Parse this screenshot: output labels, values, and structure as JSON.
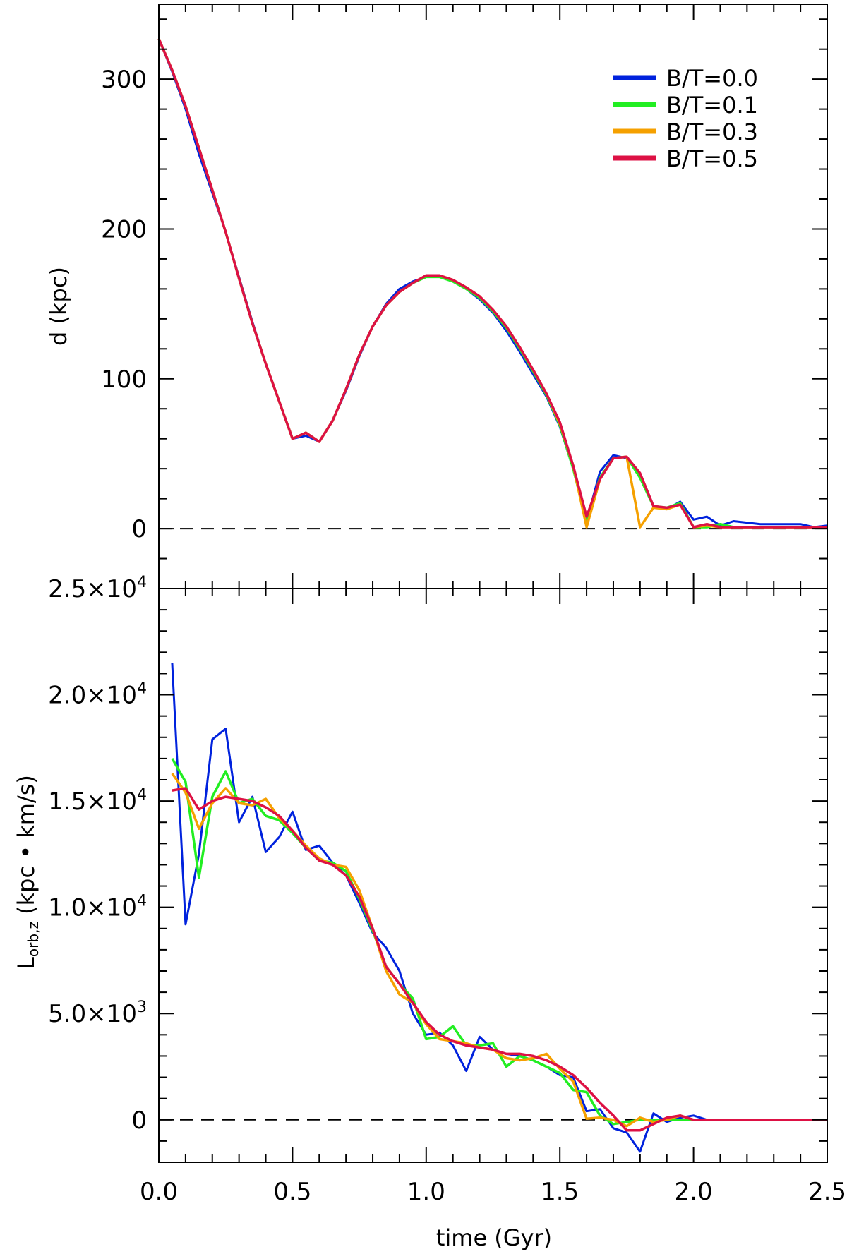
{
  "chart_data": [
    {
      "type": "line",
      "ylabel": "d (kpc)",
      "xlim": [
        0,
        2.5
      ],
      "ylim": [
        -40,
        350
      ],
      "y_ticks": [
        0,
        100,
        200,
        300
      ],
      "y_tick_labels": [
        "0",
        "100",
        "200",
        "300"
      ],
      "reference_line": 0,
      "legend": {
        "position": "top-right"
      },
      "series": [
        {
          "name": "B/T=0.0",
          "color": "#0022dd",
          "x": [
            0,
            0.05,
            0.1,
            0.15,
            0.2,
            0.25,
            0.3,
            0.35,
            0.4,
            0.45,
            0.5,
            0.55,
            0.6,
            0.65,
            0.7,
            0.75,
            0.8,
            0.85,
            0.9,
            0.95,
            1.0,
            1.05,
            1.1,
            1.15,
            1.2,
            1.25,
            1.3,
            1.35,
            1.4,
            1.45,
            1.5,
            1.55,
            1.6,
            1.65,
            1.7,
            1.75,
            1.8,
            1.85,
            1.9,
            1.95,
            2.0,
            2.05,
            2.1,
            2.15,
            2.2,
            2.25,
            2.3,
            2.35,
            2.4,
            2.45,
            2.5
          ],
          "y": [
            327,
            305,
            280,
            250,
            224,
            198,
            168,
            138,
            110,
            85,
            60,
            62,
            58,
            72,
            92,
            115,
            135,
            150,
            160,
            165,
            168,
            168,
            165,
            160,
            153,
            144,
            132,
            118,
            103,
            88,
            68,
            40,
            5,
            38,
            49,
            47,
            36,
            15,
            13,
            18,
            6,
            8,
            2,
            5,
            4,
            3,
            3,
            3,
            3,
            1,
            2
          ]
        },
        {
          "name": "B/T=0.1",
          "color": "#22ee22",
          "x": [
            0,
            0.05,
            0.1,
            0.15,
            0.2,
            0.25,
            0.3,
            0.35,
            0.4,
            0.45,
            0.5,
            0.55,
            0.6,
            0.65,
            0.7,
            0.75,
            0.8,
            0.85,
            0.9,
            0.95,
            1.0,
            1.05,
            1.1,
            1.15,
            1.2,
            1.25,
            1.3,
            1.35,
            1.4,
            1.45,
            1.5,
            1.55,
            1.6,
            1.65,
            1.7,
            1.75,
            1.8,
            1.85,
            1.9,
            1.95,
            2.0,
            2.05,
            2.1,
            2.15,
            2.2,
            2.25,
            2.3,
            2.35,
            2.4,
            2.45,
            2.5
          ],
          "y": [
            327,
            306,
            282,
            254,
            226,
            198,
            167,
            137,
            110,
            85,
            60,
            64,
            58,
            72,
            93,
            116,
            135,
            149,
            158,
            164,
            168,
            168,
            165,
            160,
            154,
            145,
            134,
            120,
            105,
            89,
            69,
            40,
            5,
            34,
            47,
            48,
            34,
            15,
            14,
            17,
            1,
            1,
            3,
            1,
            1,
            1,
            1,
            1,
            1,
            1,
            1
          ]
        },
        {
          "name": "B/T=0.3",
          "color": "#f5a000",
          "x": [
            0,
            0.05,
            0.1,
            0.15,
            0.2,
            0.25,
            0.3,
            0.35,
            0.4,
            0.45,
            0.5,
            0.55,
            0.6,
            0.65,
            0.7,
            0.75,
            0.8,
            0.85,
            0.9,
            0.95,
            1.0,
            1.05,
            1.1,
            1.15,
            1.2,
            1.25,
            1.3,
            1.35,
            1.4,
            1.45,
            1.5,
            1.55,
            1.6,
            1.65,
            1.7,
            1.75,
            1.8,
            1.85,
            1.9,
            1.95,
            2.0,
            2.05,
            2.1,
            2.15,
            2.2,
            2.25,
            2.3,
            2.35,
            2.4,
            2.45,
            2.5
          ],
          "y": [
            327,
            306,
            282,
            254,
            226,
            198,
            167,
            137,
            110,
            85,
            60,
            64,
            58,
            72,
            93,
            116,
            135,
            149,
            158,
            164,
            169,
            169,
            166,
            161,
            155,
            146,
            135,
            121,
            106,
            90,
            70,
            42,
            1,
            33,
            47,
            48,
            1,
            14,
            13,
            16,
            1,
            2,
            1,
            1,
            1,
            1,
            1,
            1,
            1,
            1,
            1
          ]
        },
        {
          "name": "B/T=0.5",
          "color": "#dd1144",
          "x": [
            0,
            0.05,
            0.1,
            0.15,
            0.2,
            0.25,
            0.3,
            0.35,
            0.4,
            0.45,
            0.5,
            0.55,
            0.6,
            0.65,
            0.7,
            0.75,
            0.8,
            0.85,
            0.9,
            0.95,
            1.0,
            1.05,
            1.1,
            1.15,
            1.2,
            1.25,
            1.3,
            1.35,
            1.4,
            1.45,
            1.5,
            1.55,
            1.6,
            1.65,
            1.7,
            1.75,
            1.8,
            1.85,
            1.9,
            1.95,
            2.0,
            2.05,
            2.1,
            2.15,
            2.2,
            2.25,
            2.3,
            2.35,
            2.4,
            2.45,
            2.5
          ],
          "y": [
            327,
            306,
            282,
            254,
            226,
            198,
            167,
            137,
            110,
            85,
            60,
            64,
            58,
            72,
            93,
            116,
            135,
            149,
            158,
            164,
            169,
            169,
            166,
            161,
            155,
            146,
            135,
            121,
            106,
            90,
            71,
            42,
            8,
            33,
            47,
            48,
            37,
            15,
            14,
            16,
            1,
            3,
            1,
            1,
            1,
            1,
            1,
            1,
            1,
            1,
            1
          ]
        }
      ]
    },
    {
      "type": "line",
      "xlabel": "time (Gyr)",
      "ylabel_main": "L",
      "ylabel_sub": "orb,z",
      "ylabel_rest": " (kpc • km/s)",
      "xlim": [
        0,
        2.5
      ],
      "ylim": [
        -2000,
        25000
      ],
      "x_ticks": [
        0,
        0.5,
        1.0,
        1.5,
        2.0,
        2.5
      ],
      "x_tick_labels": [
        "0.0",
        "0.5",
        "1.0",
        "1.5",
        "2.0",
        "2.5"
      ],
      "y_ticks": [
        0,
        5000,
        10000,
        15000,
        20000,
        25000
      ],
      "y_tick_labels": [
        {
          "mant": "0",
          "exp": ""
        },
        {
          "mant": "5.0×10",
          "exp": "3"
        },
        {
          "mant": "1.0×10",
          "exp": "4"
        },
        {
          "mant": "1.5×10",
          "exp": "4"
        },
        {
          "mant": "2.0×10",
          "exp": "4"
        },
        {
          "mant": "2.5×10",
          "exp": "4"
        }
      ],
      "reference_line": 0,
      "series": [
        {
          "name": "B/T=0.0",
          "color": "#0022dd",
          "x": [
            0.05,
            0.1,
            0.15,
            0.2,
            0.25,
            0.3,
            0.35,
            0.4,
            0.45,
            0.5,
            0.55,
            0.6,
            0.65,
            0.7,
            0.75,
            0.8,
            0.85,
            0.9,
            0.95,
            1.0,
            1.05,
            1.1,
            1.15,
            1.2,
            1.25,
            1.3,
            1.35,
            1.4,
            1.45,
            1.5,
            1.55,
            1.6,
            1.65,
            1.7,
            1.75,
            1.8,
            1.85,
            1.9,
            1.95,
            2.0,
            2.05,
            2.1,
            2.15,
            2.2,
            2.25,
            2.3,
            2.35,
            2.4,
            2.45,
            2.5
          ],
          "y": [
            21500,
            9200,
            12500,
            17900,
            18400,
            14000,
            15200,
            12600,
            13300,
            14500,
            12700,
            12900,
            12100,
            11500,
            10200,
            8800,
            8100,
            7000,
            5000,
            4000,
            4100,
            3500,
            2300,
            3900,
            3300,
            3100,
            3000,
            2800,
            2500,
            2100,
            2000,
            400,
            500,
            -400,
            -600,
            -1500,
            300,
            -100,
            100,
            200,
            0,
            0,
            0,
            0,
            0,
            0,
            0,
            0,
            0,
            0
          ]
        },
        {
          "name": "B/T=0.1",
          "color": "#22ee22",
          "x": [
            0.05,
            0.1,
            0.15,
            0.2,
            0.25,
            0.3,
            0.35,
            0.4,
            0.45,
            0.5,
            0.55,
            0.6,
            0.65,
            0.7,
            0.75,
            0.8,
            0.85,
            0.9,
            0.95,
            1.0,
            1.05,
            1.1,
            1.15,
            1.2,
            1.25,
            1.3,
            1.35,
            1.4,
            1.45,
            1.5,
            1.55,
            1.6,
            1.65,
            1.7,
            1.75,
            1.8,
            1.85,
            1.9,
            1.95,
            2.0,
            2.05,
            2.1,
            2.15,
            2.2,
            2.25,
            2.3,
            2.35,
            2.4,
            2.45,
            2.5
          ],
          "y": [
            17000,
            15900,
            11400,
            15200,
            16400,
            14900,
            15100,
            14300,
            14100,
            13500,
            12800,
            12200,
            12100,
            11700,
            10400,
            8900,
            7200,
            6400,
            5700,
            3800,
            3900,
            4400,
            3500,
            3500,
            3600,
            2500,
            3000,
            2800,
            2500,
            2200,
            1400,
            1300,
            200,
            -200,
            -100,
            0,
            0,
            0,
            0,
            0,
            0,
            0,
            0,
            0,
            0,
            0,
            0,
            0,
            0,
            0
          ]
        },
        {
          "name": "B/T=0.3",
          "color": "#f5a000",
          "x": [
            0.05,
            0.1,
            0.15,
            0.2,
            0.25,
            0.3,
            0.35,
            0.4,
            0.45,
            0.5,
            0.55,
            0.6,
            0.65,
            0.7,
            0.75,
            0.8,
            0.85,
            0.9,
            0.95,
            1.0,
            1.05,
            1.1,
            1.15,
            1.2,
            1.25,
            1.3,
            1.35,
            1.4,
            1.45,
            1.5,
            1.55,
            1.6,
            1.65,
            1.7,
            1.75,
            1.8,
            1.85,
            1.9,
            1.95,
            2.0,
            2.05,
            2.1,
            2.15,
            2.2,
            2.25,
            2.3,
            2.35,
            2.4,
            2.45,
            2.5
          ],
          "y": [
            16300,
            15400,
            13700,
            14900,
            15600,
            14900,
            14800,
            15100,
            14200,
            13600,
            12900,
            12300,
            12000,
            11900,
            10800,
            9000,
            7000,
            5900,
            5500,
            4500,
            3800,
            3700,
            3600,
            3400,
            3300,
            2900,
            2800,
            2900,
            3100,
            2400,
            1800,
            50,
            100,
            0,
            -300,
            100,
            -100,
            0,
            200,
            0,
            0,
            0,
            0,
            0,
            0,
            0,
            0,
            0,
            0,
            0
          ]
        },
        {
          "name": "B/T=0.5",
          "color": "#dd1144",
          "x": [
            0.05,
            0.1,
            0.15,
            0.2,
            0.25,
            0.3,
            0.35,
            0.4,
            0.45,
            0.5,
            0.55,
            0.6,
            0.65,
            0.7,
            0.75,
            0.8,
            0.85,
            0.9,
            0.95,
            1.0,
            1.05,
            1.1,
            1.15,
            1.2,
            1.25,
            1.3,
            1.35,
            1.4,
            1.45,
            1.5,
            1.55,
            1.6,
            1.65,
            1.7,
            1.75,
            1.8,
            1.85,
            1.9,
            1.95,
            2.0,
            2.05,
            2.1,
            2.15,
            2.2,
            2.25,
            2.3,
            2.35,
            2.4,
            2.45,
            2.5
          ],
          "y": [
            15500,
            15600,
            14600,
            15000,
            15200,
            15100,
            15000,
            14700,
            14300,
            13600,
            12800,
            12200,
            12000,
            11500,
            10500,
            9000,
            7200,
            6400,
            5500,
            4600,
            4000,
            3700,
            3500,
            3400,
            3300,
            3100,
            3100,
            3000,
            2800,
            2500,
            2100,
            1500,
            800,
            200,
            -500,
            -500,
            -200,
            100,
            200,
            0,
            0,
            0,
            0,
            0,
            0,
            0,
            0,
            0,
            0,
            0
          ]
        }
      ]
    }
  ]
}
